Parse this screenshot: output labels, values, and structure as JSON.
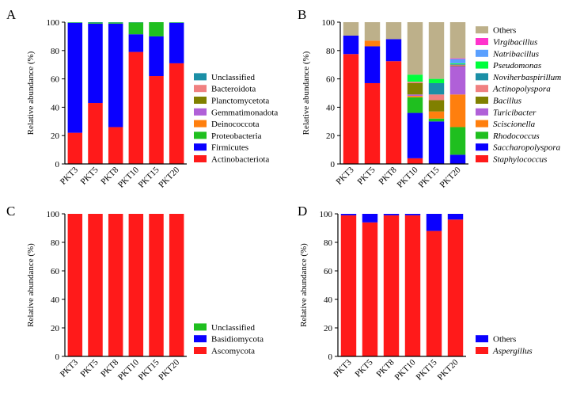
{
  "chart_data": [
    {
      "panel": "A",
      "type": "bar",
      "stacked": true,
      "ylabel": "Relative abundance (%)",
      "ylim": [
        0,
        100
      ],
      "yticks": [
        0,
        20,
        40,
        60,
        80,
        100
      ],
      "categories": [
        "PKT3",
        "PKT5",
        "PKT8",
        "PKT10",
        "PKT15",
        "PKT20"
      ],
      "legend_italic": false,
      "series": [
        {
          "name": "Actinobacteriota",
          "color": "#ff1a1a",
          "values": [
            22,
            43,
            26,
            79,
            62,
            71
          ]
        },
        {
          "name": "Firmicutes",
          "color": "#0a00ff",
          "values": [
            77.5,
            56,
            73,
            12.5,
            28,
            28.5
          ]
        },
        {
          "name": "Proteobacteria",
          "color": "#1fbf1f",
          "values": [
            0.3,
            0.7,
            0.8,
            8.3,
            10,
            0.3
          ]
        },
        {
          "name": "Deinococcota",
          "color": "#ff7f0e",
          "values": [
            0,
            0,
            0,
            0,
            0,
            0
          ]
        },
        {
          "name": "Gemmatimonadota",
          "color": "#b060d8",
          "values": [
            0,
            0,
            0,
            0,
            0,
            0
          ]
        },
        {
          "name": "Planctomycetota",
          "color": "#808000",
          "values": [
            0,
            0,
            0,
            0,
            0,
            0
          ]
        },
        {
          "name": "Bacteroidota",
          "color": "#f08080",
          "values": [
            0,
            0,
            0,
            0,
            0,
            0
          ]
        },
        {
          "name": "Unclassified",
          "color": "#1b8fa6",
          "values": [
            0.2,
            0.3,
            0.2,
            0.2,
            0,
            0.2
          ]
        }
      ]
    },
    {
      "panel": "B",
      "type": "bar",
      "stacked": true,
      "ylabel": "Relative abundance (%)",
      "ylim": [
        0,
        100
      ],
      "yticks": [
        0,
        20,
        40,
        60,
        80,
        100
      ],
      "categories": [
        "PKT3",
        "PKT5",
        "PKT8",
        "PKT10",
        "PKT15",
        "PKT20"
      ],
      "legend_italic": true,
      "series": [
        {
          "name": "Staphylococcus",
          "color": "#ff1a1a",
          "values": [
            77.5,
            57,
            72.5,
            4,
            0,
            0
          ]
        },
        {
          "name": "Saccharopolyspora",
          "color": "#0a00ff",
          "values": [
            13,
            26,
            15.5,
            32,
            30,
            6.5
          ]
        },
        {
          "name": "Rhodococcus",
          "color": "#1fbf1f",
          "values": [
            0,
            0,
            0,
            11,
            2,
            19.5
          ]
        },
        {
          "name": "Sciscionella",
          "color": "#ff7f0e",
          "values": [
            0,
            4,
            0,
            1,
            5,
            23
          ]
        },
        {
          "name": "Turicibacter",
          "color": "#b060d8",
          "values": [
            0,
            0,
            0,
            1,
            0,
            20
          ]
        },
        {
          "name": "Bacillus",
          "color": "#808000",
          "values": [
            0,
            0,
            0,
            8,
            8,
            0.5
          ]
        },
        {
          "name": "Actinopolyspora",
          "color": "#f08080",
          "values": [
            0,
            0,
            0,
            1,
            4,
            0.5
          ]
        },
        {
          "name": "Noviherbaspirillum",
          "color": "#1b8fa6",
          "values": [
            0,
            0,
            0,
            0,
            8,
            0.5
          ]
        },
        {
          "name": "Pseudomonas",
          "color": "#00ff3c",
          "values": [
            0,
            0,
            0,
            5,
            3,
            0.5
          ]
        },
        {
          "name": "Natribacillus",
          "color": "#5aa0ff",
          "values": [
            0,
            0,
            0,
            0,
            0,
            3
          ]
        },
        {
          "name": "Virgibacillus",
          "color": "#ff33cc",
          "values": [
            0,
            0,
            0,
            0,
            0,
            0.5
          ]
        },
        {
          "name": "Others",
          "color": "#bdb08a",
          "values": [
            9.5,
            13,
            12,
            37,
            40,
            25.5
          ]
        }
      ]
    },
    {
      "panel": "C",
      "type": "bar",
      "stacked": true,
      "ylabel": "Relative abundance (%)",
      "ylim": [
        0,
        100
      ],
      "yticks": [
        0,
        20,
        40,
        60,
        80,
        100
      ],
      "categories": [
        "PKT3",
        "PKT5",
        "PKT8",
        "PKT10",
        "PKT15",
        "PKT20"
      ],
      "legend_italic": false,
      "series": [
        {
          "name": "Ascomycota",
          "color": "#ff1a1a",
          "values": [
            100,
            100,
            100,
            100,
            100,
            100
          ]
        },
        {
          "name": "Basidiomycota",
          "color": "#0a00ff",
          "values": [
            0,
            0,
            0,
            0,
            0,
            0
          ]
        },
        {
          "name": "Unclassified",
          "color": "#1fbf1f",
          "values": [
            0,
            0,
            0,
            0,
            0,
            0
          ]
        }
      ]
    },
    {
      "panel": "D",
      "type": "bar",
      "stacked": true,
      "ylabel": "Relative abundance (%)",
      "ylim": [
        0,
        100
      ],
      "yticks": [
        0,
        20,
        40,
        60,
        80,
        100
      ],
      "categories": [
        "PKT3",
        "PKT5",
        "PKT8",
        "PKT10",
        "PKT15",
        "PKT20"
      ],
      "legend_italic": false,
      "series": [
        {
          "name": "Aspergillus",
          "color": "#ff1a1a",
          "italic": true,
          "values": [
            99,
            94,
            99,
            99,
            88,
            96
          ]
        },
        {
          "name": "Others",
          "color": "#0a00ff",
          "italic": false,
          "values": [
            1,
            6,
            1,
            1,
            12,
            4
          ]
        }
      ]
    }
  ]
}
